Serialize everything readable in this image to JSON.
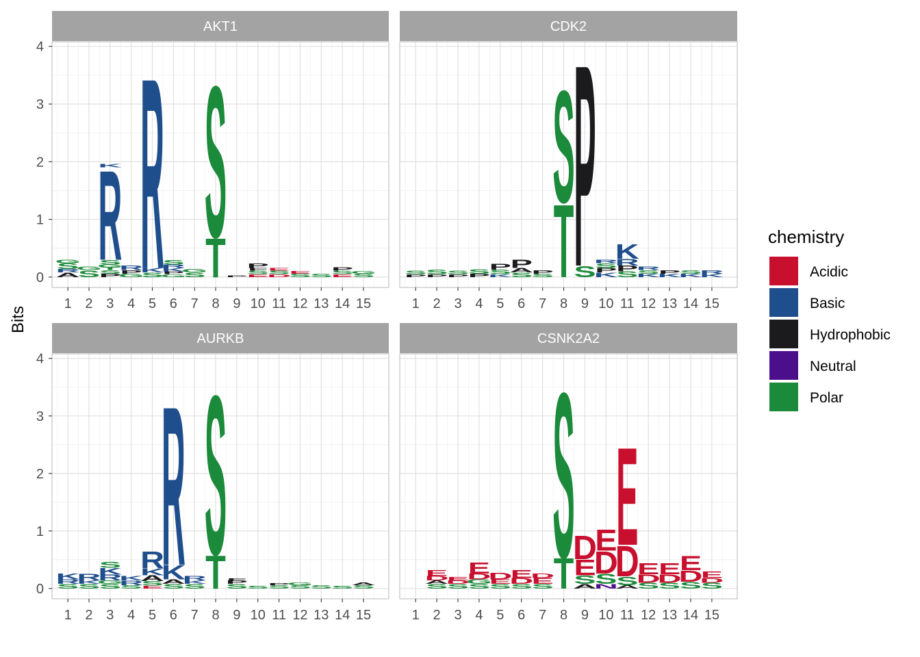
{
  "chart_data": {
    "type": "sequence-logo",
    "ylabel": "Bits",
    "ylim": [
      0,
      4
    ],
    "yticks": [
      0,
      1,
      2,
      3,
      4
    ],
    "positions": [
      1,
      2,
      3,
      4,
      5,
      6,
      7,
      8,
      9,
      10,
      11,
      12,
      13,
      14,
      15
    ],
    "legend": {
      "title": "chemistry",
      "placement": "right",
      "items": [
        {
          "name": "Acidic",
          "color": "#C8102E",
          "letters": "DE"
        },
        {
          "name": "Basic",
          "color": "#1F4E8C",
          "letters": "KRH"
        },
        {
          "name": "Hydrophobic",
          "color": "#1B1B1E",
          "letters": "ACFILMPVW"
        },
        {
          "name": "Neutral",
          "color": "#4B0F8C",
          "letters": "NQ"
        },
        {
          "name": "Polar",
          "color": "#1B8A3A",
          "letters": "GSTYC"
        }
      ]
    },
    "panels": [
      {
        "title": "AKT1",
        "stacks": [
          {
            "pos": 1,
            "letters": [
              [
                "A",
                0.08
              ],
              [
                "R",
                0.06
              ],
              [
                "S",
                0.1
              ],
              [
                "G",
                0.06
              ]
            ]
          },
          {
            "pos": 2,
            "letters": [
              [
                "S",
                0.12
              ],
              [
                "G",
                0.06
              ]
            ]
          },
          {
            "pos": 3,
            "letters": [
              [
                "P",
                0.06
              ],
              [
                "S",
                0.06
              ],
              [
                "T",
                0.05
              ],
              [
                "G",
                0.05
              ],
              [
                "S",
                0.08
              ],
              [
                "R",
                1.6
              ],
              [
                "K",
                0.06
              ]
            ]
          },
          {
            "pos": 4,
            "letters": [
              [
                "G",
                0.06
              ],
              [
                "P",
                0.06
              ],
              [
                "R",
                0.08
              ]
            ]
          },
          {
            "pos": 5,
            "letters": [
              [
                "S",
                0.08
              ],
              [
                "K",
                0.08
              ],
              [
                "R",
                3.4
              ]
            ]
          },
          {
            "pos": 6,
            "letters": [
              [
                "G",
                0.05
              ],
              [
                "P",
                0.05
              ],
              [
                "K",
                0.06
              ],
              [
                "R",
                0.06
              ],
              [
                "S",
                0.08
              ]
            ]
          },
          {
            "pos": 7,
            "letters": [
              [
                "S",
                0.08
              ],
              [
                "G",
                0.06
              ]
            ]
          },
          {
            "pos": 8,
            "letters": [
              [
                "T",
                0.7
              ],
              [
                "S",
                2.7
              ]
            ]
          },
          {
            "pos": 9,
            "letters": [
              [
                "P",
                0.03
              ]
            ]
          },
          {
            "pos": 10,
            "letters": [
              [
                "E",
                0.05
              ],
              [
                "S",
                0.06
              ],
              [
                "F",
                0.05
              ],
              [
                "P",
                0.08
              ]
            ]
          },
          {
            "pos": 11,
            "letters": [
              [
                "D",
                0.05
              ],
              [
                "S",
                0.06
              ],
              [
                "E",
                0.05
              ]
            ]
          },
          {
            "pos": 12,
            "letters": [
              [
                "S",
                0.06
              ],
              [
                "E",
                0.05
              ]
            ]
          },
          {
            "pos": 13,
            "letters": [
              [
                "S",
                0.06
              ]
            ]
          },
          {
            "pos": 14,
            "letters": [
              [
                "E",
                0.05
              ],
              [
                "S",
                0.06
              ],
              [
                "P",
                0.06
              ]
            ]
          },
          {
            "pos": 15,
            "letters": [
              [
                "S",
                0.06
              ],
              [
                "G",
                0.05
              ]
            ]
          }
        ]
      },
      {
        "title": "CDK2",
        "stacks": [
          {
            "pos": 1,
            "letters": [
              [
                "P",
                0.05
              ],
              [
                "S",
                0.06
              ]
            ]
          },
          {
            "pos": 2,
            "letters": [
              [
                "P",
                0.05
              ],
              [
                "S",
                0.08
              ]
            ]
          },
          {
            "pos": 3,
            "letters": [
              [
                "P",
                0.05
              ],
              [
                "S",
                0.06
              ]
            ]
          },
          {
            "pos": 4,
            "letters": [
              [
                "P",
                0.06
              ],
              [
                "S",
                0.08
              ]
            ]
          },
          {
            "pos": 5,
            "letters": [
              [
                "K",
                0.05
              ],
              [
                "S",
                0.08
              ],
              [
                "P",
                0.1
              ]
            ]
          },
          {
            "pos": 6,
            "letters": [
              [
                "S",
                0.08
              ],
              [
                "A",
                0.08
              ],
              [
                "P",
                0.15
              ]
            ]
          },
          {
            "pos": 7,
            "letters": [
              [
                "S",
                0.06
              ],
              [
                "P",
                0.06
              ]
            ]
          },
          {
            "pos": 8,
            "letters": [
              [
                "T",
                1.3
              ],
              [
                "S",
                2.0
              ]
            ]
          },
          {
            "pos": 9,
            "letters": [
              [
                "S",
                0.2
              ],
              [
                "P",
                3.6
              ]
            ]
          },
          {
            "pos": 10,
            "letters": [
              [
                "K",
                0.08
              ],
              [
                "P",
                0.08
              ],
              [
                "S",
                0.08
              ],
              [
                "R",
                0.06
              ]
            ]
          },
          {
            "pos": 11,
            "letters": [
              [
                "S",
                0.1
              ],
              [
                "P",
                0.1
              ],
              [
                "R",
                0.12
              ],
              [
                "K",
                0.26
              ]
            ]
          },
          {
            "pos": 12,
            "letters": [
              [
                "K",
                0.06
              ],
              [
                "S",
                0.06
              ],
              [
                "R",
                0.06
              ]
            ]
          },
          {
            "pos": 13,
            "letters": [
              [
                "K",
                0.06
              ],
              [
                "P",
                0.06
              ]
            ]
          },
          {
            "pos": 14,
            "letters": [
              [
                "K",
                0.06
              ],
              [
                "S",
                0.06
              ]
            ]
          },
          {
            "pos": 15,
            "letters": [
              [
                "K",
                0.06
              ],
              [
                "R",
                0.06
              ]
            ]
          }
        ]
      },
      {
        "title": "AURKB",
        "stacks": [
          {
            "pos": 1,
            "letters": [
              [
                "S",
                0.08
              ],
              [
                "R",
                0.08
              ],
              [
                "K",
                0.1
              ]
            ]
          },
          {
            "pos": 2,
            "letters": [
              [
                "S",
                0.08
              ],
              [
                "K",
                0.06
              ],
              [
                "R",
                0.12
              ]
            ]
          },
          {
            "pos": 3,
            "letters": [
              [
                "S",
                0.08
              ],
              [
                "G",
                0.06
              ],
              [
                "R",
                0.1
              ],
              [
                "K",
                0.12
              ],
              [
                "S",
                0.1
              ]
            ]
          },
          {
            "pos": 4,
            "letters": [
              [
                "S",
                0.06
              ],
              [
                "R",
                0.08
              ],
              [
                "K",
                0.08
              ]
            ]
          },
          {
            "pos": 5,
            "letters": [
              [
                "E",
                0.05
              ],
              [
                "S",
                0.08
              ],
              [
                "A",
                0.1
              ],
              [
                "K",
                0.12
              ],
              [
                "R",
                0.3
              ]
            ]
          },
          {
            "pos": 6,
            "letters": [
              [
                "S",
                0.08
              ],
              [
                "A",
                0.08
              ],
              [
                "K",
                0.25
              ],
              [
                "R",
                2.85
              ]
            ]
          },
          {
            "pos": 7,
            "letters": [
              [
                "S",
                0.08
              ],
              [
                "K",
                0.06
              ],
              [
                "R",
                0.08
              ]
            ]
          },
          {
            "pos": 8,
            "letters": [
              [
                "T",
                0.6
              ],
              [
                "S",
                2.85
              ]
            ]
          },
          {
            "pos": 9,
            "letters": [
              [
                "S",
                0.08
              ],
              [
                "P",
                0.06
              ],
              [
                "F",
                0.04
              ]
            ]
          },
          {
            "pos": 10,
            "letters": [
              [
                "S",
                0.05
              ]
            ]
          },
          {
            "pos": 11,
            "letters": [
              [
                "S",
                0.06
              ],
              [
                "P",
                0.04
              ]
            ]
          },
          {
            "pos": 12,
            "letters": [
              [
                "S",
                0.06
              ],
              [
                "G",
                0.05
              ]
            ]
          },
          {
            "pos": 13,
            "letters": [
              [
                "S",
                0.06
              ]
            ]
          },
          {
            "pos": 14,
            "letters": [
              [
                "S",
                0.05
              ]
            ]
          },
          {
            "pos": 15,
            "letters": [
              [
                "S",
                0.06
              ],
              [
                "A",
                0.05
              ]
            ]
          }
        ]
      },
      {
        "title": "CSNK2A2",
        "stacks": [
          {
            "pos": 1,
            "letters": []
          },
          {
            "pos": 2,
            "letters": [
              [
                "S",
                0.08
              ],
              [
                "A",
                0.06
              ],
              [
                "D",
                0.08
              ],
              [
                "E",
                0.1
              ]
            ]
          },
          {
            "pos": 3,
            "letters": [
              [
                "S",
                0.08
              ],
              [
                "D",
                0.06
              ],
              [
                "E",
                0.06
              ]
            ]
          },
          {
            "pos": 4,
            "letters": [
              [
                "S",
                0.08
              ],
              [
                "G",
                0.08
              ],
              [
                "D",
                0.1
              ],
              [
                "E",
                0.2
              ]
            ]
          },
          {
            "pos": 5,
            "letters": [
              [
                "S",
                0.08
              ],
              [
                "E",
                0.08
              ],
              [
                "D",
                0.12
              ]
            ]
          },
          {
            "pos": 6,
            "letters": [
              [
                "S",
                0.08
              ],
              [
                "D",
                0.1
              ],
              [
                "E",
                0.14
              ]
            ]
          },
          {
            "pos": 7,
            "letters": [
              [
                "S",
                0.08
              ],
              [
                "E",
                0.1
              ],
              [
                "D",
                0.08
              ]
            ]
          },
          {
            "pos": 8,
            "letters": [
              [
                "T",
                0.55
              ],
              [
                "S",
                2.95
              ]
            ]
          },
          {
            "pos": 9,
            "letters": [
              [
                "A",
                0.08
              ],
              [
                "S",
                0.15
              ],
              [
                "E",
                0.28
              ],
              [
                "D",
                0.42
              ]
            ]
          },
          {
            "pos": 10,
            "letters": [
              [
                "N",
                0.08
              ],
              [
                "S",
                0.18
              ],
              [
                "D",
                0.4
              ],
              [
                "E",
                0.38
              ]
            ]
          },
          {
            "pos": 11,
            "letters": [
              [
                "A",
                0.06
              ],
              [
                "S",
                0.15
              ],
              [
                "D",
                0.55
              ],
              [
                "E",
                1.75
              ]
            ]
          },
          {
            "pos": 12,
            "letters": [
              [
                "S",
                0.1
              ],
              [
                "D",
                0.15
              ],
              [
                "E",
                0.2
              ]
            ]
          },
          {
            "pos": 13,
            "letters": [
              [
                "S",
                0.1
              ],
              [
                "D",
                0.15
              ],
              [
                "E",
                0.2
              ]
            ]
          },
          {
            "pos": 14,
            "letters": [
              [
                "S",
                0.12
              ],
              [
                "D",
                0.2
              ],
              [
                "E",
                0.25
              ]
            ]
          },
          {
            "pos": 15,
            "letters": [
              [
                "S",
                0.1
              ],
              [
                "D",
                0.08
              ],
              [
                "E",
                0.12
              ]
            ]
          }
        ]
      }
    ]
  }
}
